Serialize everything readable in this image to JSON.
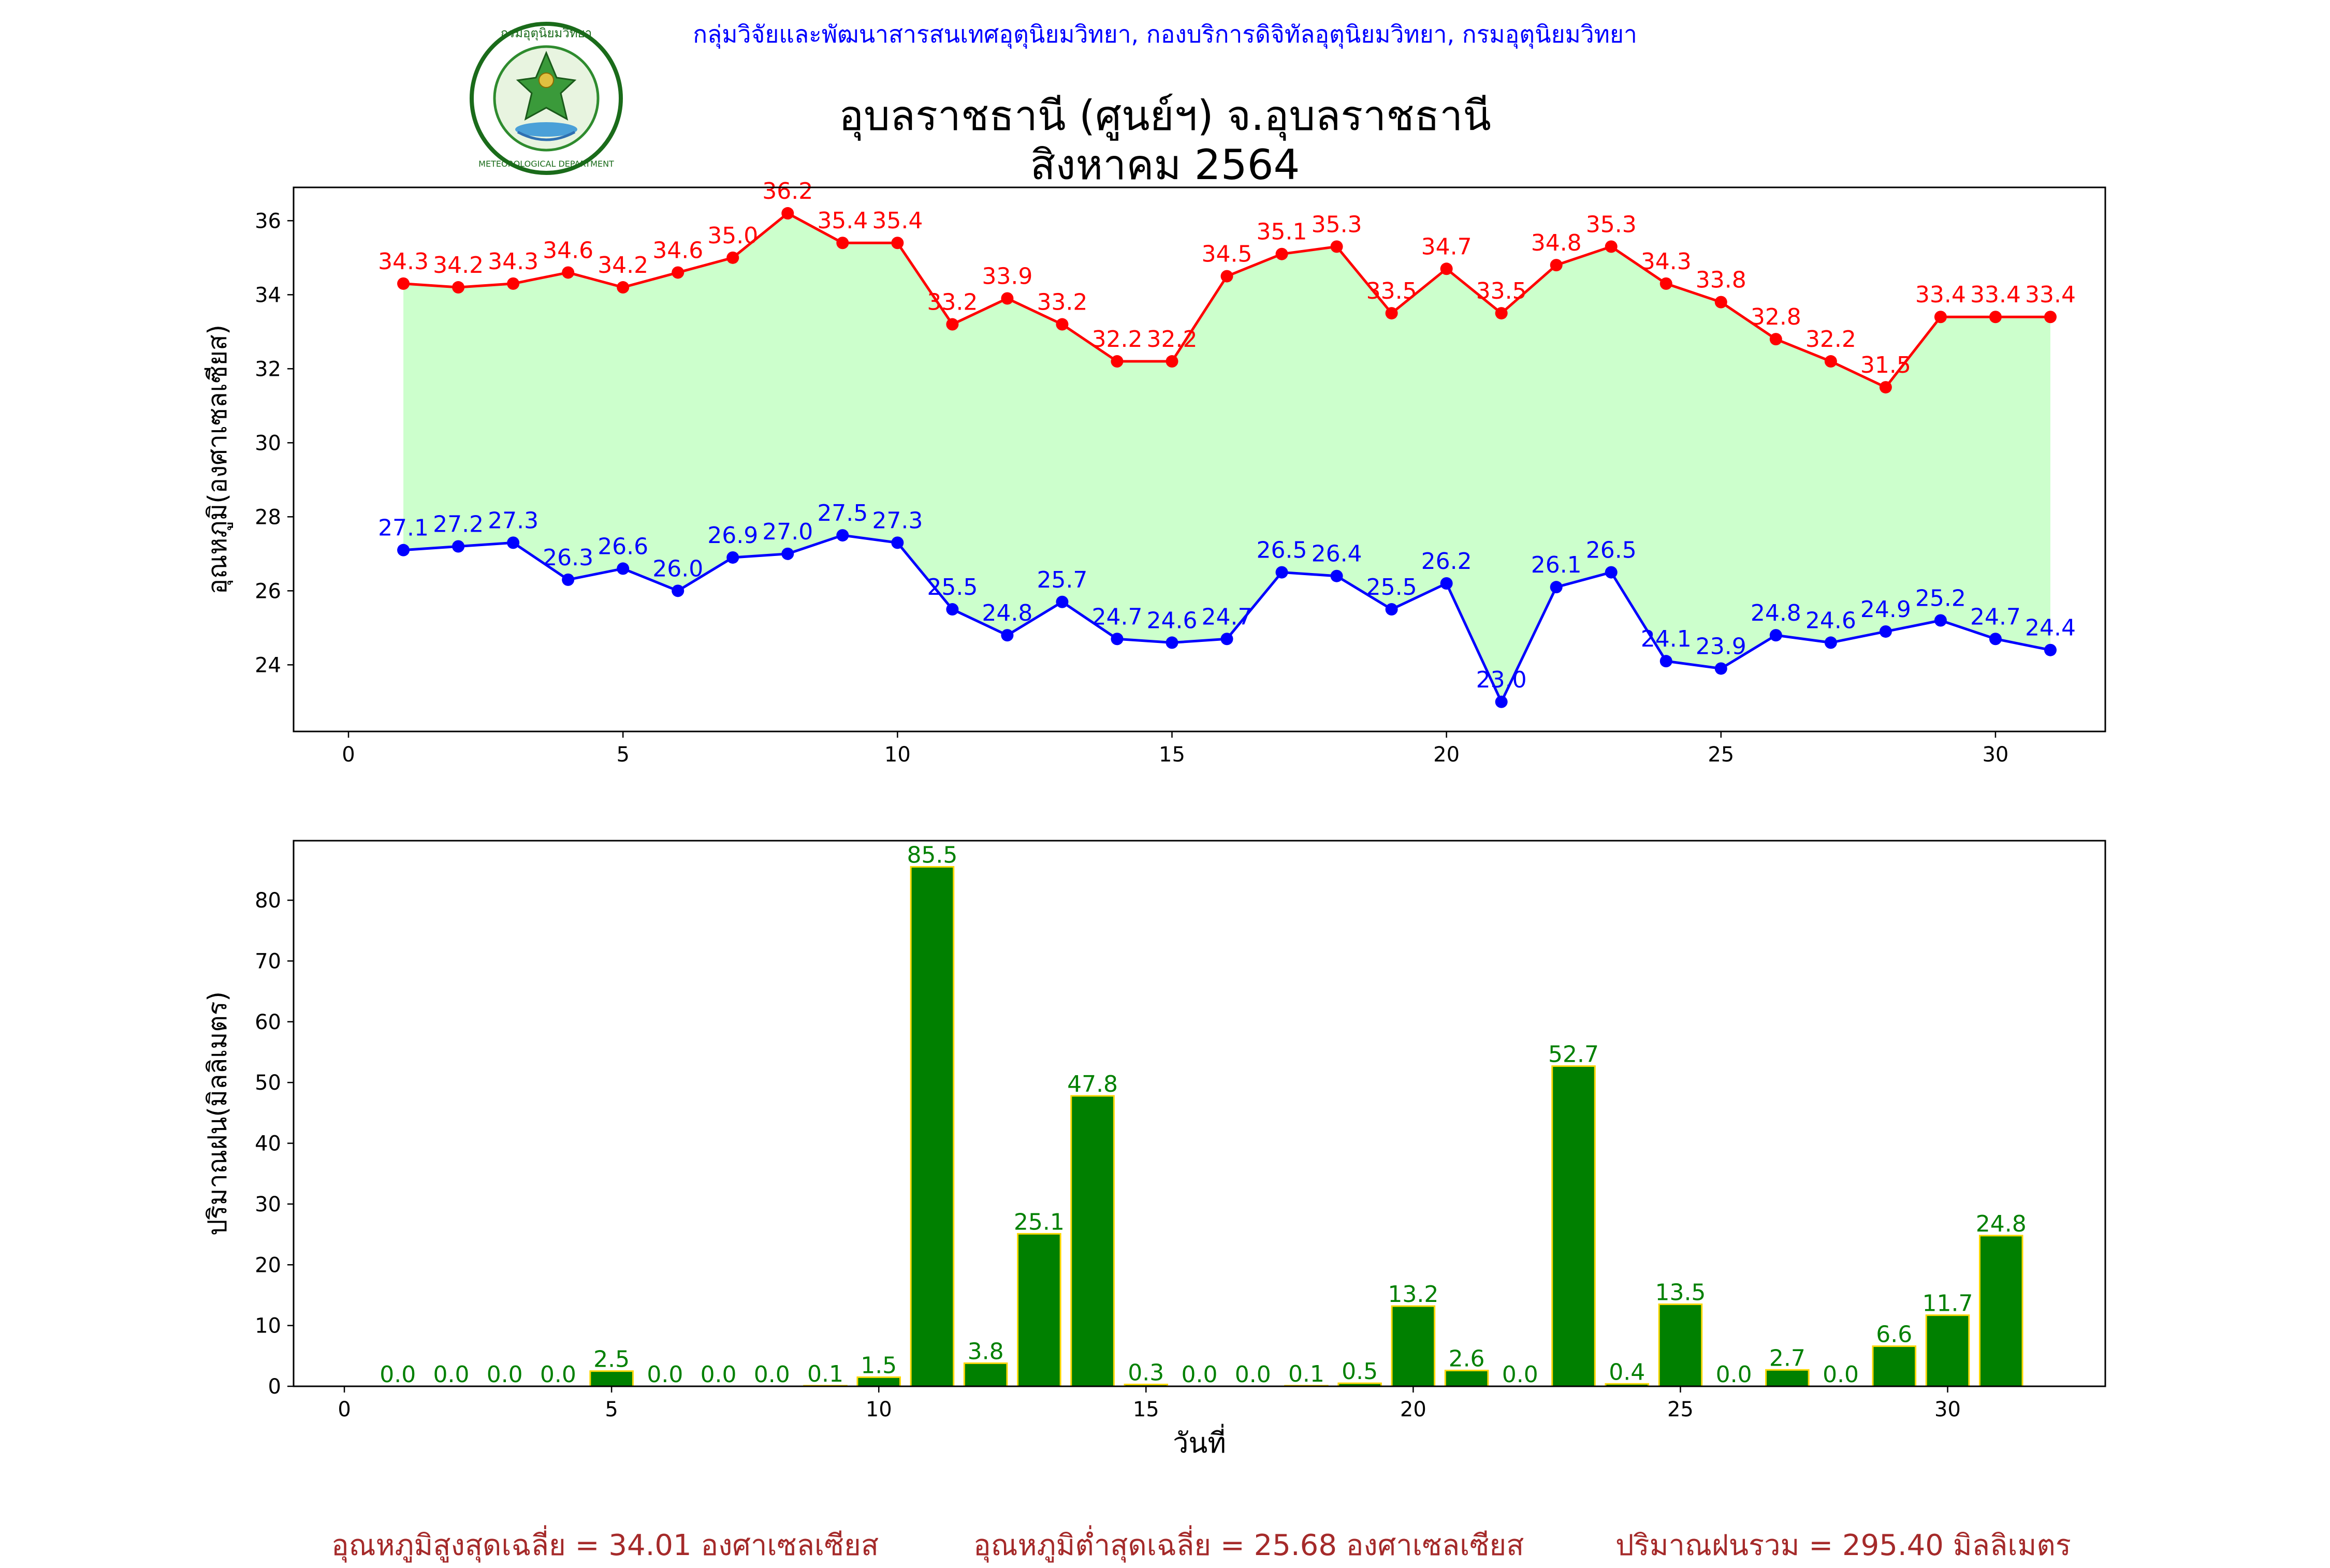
{
  "header": {
    "department_line": "กลุ่มวิจัยและพัฒนาสารสนเทศอุตุนิยมวิทยา, กองบริการดิจิทัลอุตุนิยมวิทยา, กรมอุตุนิยมวิทยา",
    "logo_text_top": "กรมอุตุนิยมวิทยา",
    "logo_text_bottom": "METEOROLOGICAL DEPARTMENT",
    "title_line1": "อุบลราชธานี (ศูนย์ฯ) จ.อุบลราชธานี",
    "title_line2": "สิงหาคม 2564"
  },
  "footer": {
    "avg_max": "อุณหภูมิสูงสุดเฉลี่ย = 34.01 องศาเซลเซียส",
    "avg_min": "อุณหภูมิต่ำสุดเฉลี่ย = 25.68 องศาเซลเซียส",
    "rain_total": "ปริมาณฝนรวม = 295.40 มิลลิเมตร"
  },
  "colors": {
    "max_temp": "#ff0000",
    "min_temp": "#0000ff",
    "fill": "#ccffcc",
    "bar": "#008000",
    "bar_edge": "#ffd700",
    "bar_label": "#008000",
    "header": "#0000ff",
    "footer": "#a52a2a"
  },
  "chart_data": [
    {
      "type": "line",
      "x": [
        1,
        2,
        3,
        4,
        5,
        6,
        7,
        8,
        9,
        10,
        11,
        12,
        13,
        14,
        15,
        16,
        17,
        18,
        19,
        20,
        21,
        22,
        23,
        24,
        25,
        26,
        27,
        28,
        29,
        30,
        31
      ],
      "series": [
        {
          "values": [
            34.3,
            34.2,
            34.3,
            34.6,
            34.2,
            34.6,
            35.0,
            36.2,
            35.4,
            35.4,
            33.2,
            33.9,
            33.2,
            32.2,
            32.2,
            34.5,
            35.1,
            35.3,
            33.5,
            34.7,
            33.5,
            34.8,
            35.3,
            34.3,
            33.8,
            32.8,
            32.2,
            31.5,
            33.4,
            33.4,
            33.4
          ]
        },
        {
          "values": [
            27.1,
            27.2,
            27.3,
            26.3,
            26.6,
            26.0,
            26.9,
            27.0,
            27.5,
            27.3,
            25.5,
            24.8,
            25.7,
            24.7,
            24.6,
            24.7,
            26.5,
            26.4,
            25.5,
            26.2,
            23.0,
            26.1,
            26.5,
            24.1,
            23.9,
            24.8,
            24.6,
            24.9,
            25.2,
            24.7,
            24.4
          ]
        }
      ],
      "xlim": [
        -1,
        32
      ],
      "ylim": [
        22.2,
        36.9
      ],
      "xticks": [
        0,
        5,
        10,
        15,
        20,
        25,
        30
      ],
      "yticks": [
        24,
        26,
        28,
        30,
        32,
        34,
        36
      ],
      "ylabel": "อุณหภูมิ(องศาเซลเซียส)",
      "xlabel": "",
      "grid": false
    },
    {
      "type": "bar",
      "x": [
        1,
        2,
        3,
        4,
        5,
        6,
        7,
        8,
        9,
        10,
        11,
        12,
        13,
        14,
        15,
        16,
        17,
        18,
        19,
        20,
        21,
        22,
        23,
        24,
        25,
        26,
        27,
        28,
        29,
        30,
        31
      ],
      "values": [
        0.0,
        0.0,
        0.0,
        0.0,
        2.5,
        0.0,
        0.0,
        0.0,
        0.1,
        1.5,
        85.5,
        3.8,
        25.1,
        47.8,
        0.3,
        0.0,
        0.0,
        0.1,
        0.5,
        13.2,
        2.6,
        0.0,
        52.7,
        0.4,
        13.5,
        0.0,
        2.7,
        0.0,
        6.6,
        11.7,
        24.8
      ],
      "xlim": [
        -0.95,
        32.95
      ],
      "ylim": [
        0,
        89.8
      ],
      "xticks": [
        0,
        5,
        10,
        15,
        20,
        25,
        30
      ],
      "yticks": [
        0,
        10,
        20,
        30,
        40,
        50,
        60,
        70,
        80
      ],
      "ylabel": "ปริมาณฝน(มิลลิเมตร)",
      "xlabel": "วันที่",
      "grid": false
    }
  ]
}
